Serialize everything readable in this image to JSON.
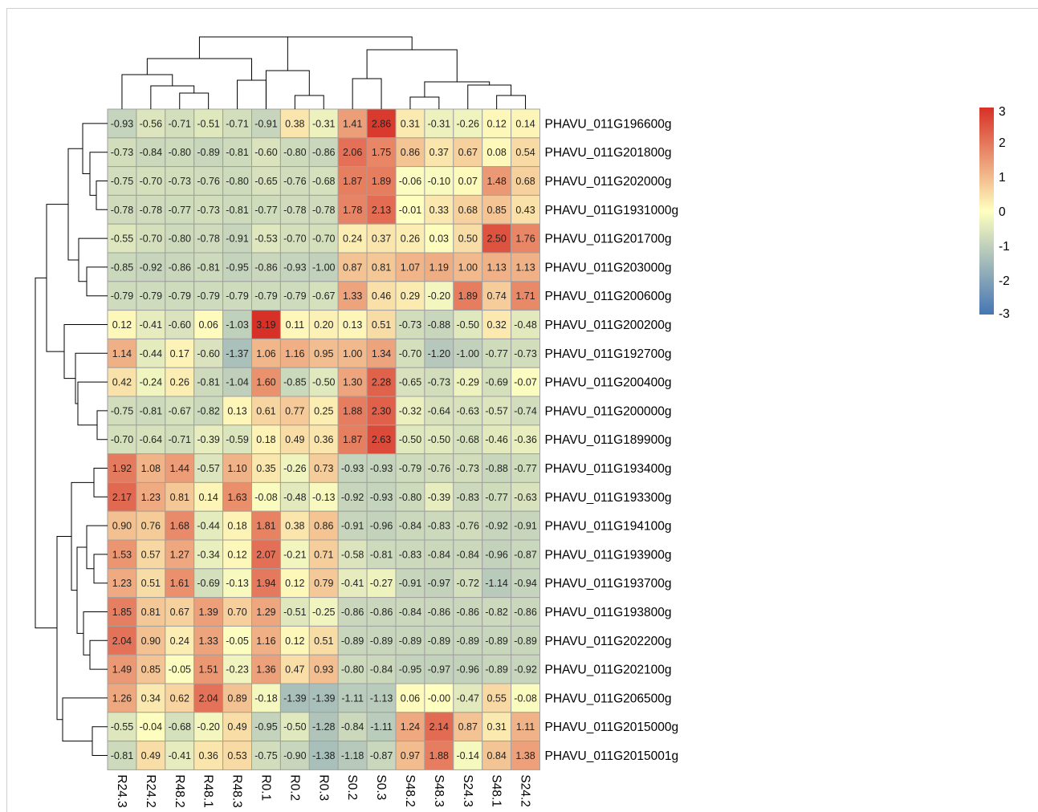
{
  "chart_data": {
    "type": "heatmap",
    "columns": [
      "R24.3",
      "R24.2",
      "R48.2",
      "R48.1",
      "R48.3",
      "R0.1",
      "R0.2",
      "R0.3",
      "S0.2",
      "S0.3",
      "S48.2",
      "S48.3",
      "S24.3",
      "S48.1",
      "S24.2"
    ],
    "rows": [
      "PHAVU_011G196600g",
      "PHAVU_011G201800g",
      "PHAVU_011G202000g",
      "PHAVU_011G1931000g",
      "PHAVU_011G201700g",
      "PHAVU_011G203000g",
      "PHAVU_011G200600g",
      "PHAVU_011G200200g",
      "PHAVU_011G192700g",
      "PHAVU_011G200400g",
      "PHAVU_011G200000g",
      "PHAVU_011G189900g",
      "PHAVU_011G193400g",
      "PHAVU_011G193300g",
      "PHAVU_011G194100g",
      "PHAVU_011G193900g",
      "PHAVU_011G193700g",
      "PHAVU_011G193800g",
      "PHAVU_011G202200g",
      "PHAVU_011G202100g",
      "PHAVU_011G206500g",
      "PHAVU_011G2015000g",
      "PHAVU_011G2015001g"
    ],
    "values": [
      [
        "-0.93",
        "-0.56",
        "-0.71",
        "-0.51",
        "-0.71",
        "-0.91",
        "0.38",
        "-0.31",
        "1.41",
        "2.86",
        "0.31",
        "-0.31",
        "-0.26",
        "0.12",
        "0.14"
      ],
      [
        "-0.73",
        "-0.84",
        "-0.80",
        "-0.89",
        "-0.81",
        "-0.60",
        "-0.80",
        "-0.86",
        "2.06",
        "1.75",
        "0.86",
        "0.37",
        "0.67",
        "0.08",
        "0.54"
      ],
      [
        "-0.75",
        "-0.70",
        "-0.73",
        "-0.76",
        "-0.80",
        "-0.65",
        "-0.76",
        "-0.68",
        "1.87",
        "1.89",
        "-0.06",
        "-0.10",
        "0.07",
        "1.48",
        "0.68"
      ],
      [
        "-0.78",
        "-0.78",
        "-0.77",
        "-0.73",
        "-0.81",
        "-0.77",
        "-0.78",
        "-0.78",
        "1.78",
        "2.13",
        "-0.01",
        "0.33",
        "0.68",
        "0.85",
        "0.43"
      ],
      [
        "-0.55",
        "-0.70",
        "-0.80",
        "-0.78",
        "-0.91",
        "-0.53",
        "-0.70",
        "-0.70",
        "0.24",
        "0.37",
        "0.26",
        "0.03",
        "0.50",
        "2.50",
        "1.76"
      ],
      [
        "-0.85",
        "-0.92",
        "-0.86",
        "-0.81",
        "-0.95",
        "-0.86",
        "-0.93",
        "-1.00",
        "0.87",
        "0.81",
        "1.07",
        "1.19",
        "1.00",
        "1.13",
        "1.13"
      ],
      [
        "-0.79",
        "-0.79",
        "-0.79",
        "-0.79",
        "-0.79",
        "-0.79",
        "-0.79",
        "-0.67",
        "1.33",
        "0.46",
        "0.29",
        "-0.20",
        "1.89",
        "0.74",
        "1.71"
      ],
      [
        "0.12",
        "-0.41",
        "-0.60",
        "0.06",
        "-1.03",
        "3.19",
        "0.11",
        "0.20",
        "0.13",
        "0.51",
        "-0.73",
        "-0.88",
        "-0.50",
        "0.32",
        "-0.48"
      ],
      [
        "1.14",
        "-0.44",
        "0.17",
        "-0.60",
        "-1.37",
        "1.06",
        "1.16",
        "0.95",
        "1.00",
        "1.34",
        "-0.70",
        "-1.20",
        "-1.00",
        "-0.77",
        "-0.73"
      ],
      [
        "0.42",
        "-0.24",
        "0.26",
        "-0.81",
        "-1.04",
        "1.60",
        "-0.85",
        "-0.50",
        "1.30",
        "2.28",
        "-0.65",
        "-0.73",
        "-0.29",
        "-0.69",
        "-0.07"
      ],
      [
        "-0.75",
        "-0.81",
        "-0.67",
        "-0.82",
        "0.13",
        "0.61",
        "0.77",
        "0.25",
        "1.88",
        "2.30",
        "-0.32",
        "-0.64",
        "-0.63",
        "-0.57",
        "-0.74"
      ],
      [
        "-0.70",
        "-0.64",
        "-0.71",
        "-0.39",
        "-0.59",
        "0.18",
        "0.49",
        "0.36",
        "1.87",
        "2.63",
        "-0.50",
        "-0.50",
        "-0.68",
        "-0.46",
        "-0.36"
      ],
      [
        "1.92",
        "1.08",
        "1.44",
        "-0.57",
        "1.10",
        "0.35",
        "-0.26",
        "0.73",
        "-0.93",
        "-0.93",
        "-0.79",
        "-0.76",
        "-0.73",
        "-0.88",
        "-0.77"
      ],
      [
        "2.17",
        "1.23",
        "0.81",
        "0.14",
        "1.63",
        "-0.08",
        "-0.48",
        "-0.13",
        "-0.92",
        "-0.93",
        "-0.80",
        "-0.39",
        "-0.83",
        "-0.77",
        "-0.63"
      ],
      [
        "0.90",
        "0.76",
        "1.68",
        "-0.44",
        "0.18",
        "1.81",
        "0.38",
        "0.86",
        "-0.91",
        "-0.96",
        "-0.84",
        "-0.83",
        "-0.76",
        "-0.92",
        "-0.91"
      ],
      [
        "1.53",
        "0.57",
        "1.27",
        "-0.34",
        "0.12",
        "2.07",
        "-0.21",
        "0.71",
        "-0.58",
        "-0.81",
        "-0.83",
        "-0.84",
        "-0.84",
        "-0.96",
        "-0.87"
      ],
      [
        "1.23",
        "0.51",
        "1.61",
        "-0.69",
        "-0.13",
        "1.94",
        "0.12",
        "0.79",
        "-0.41",
        "-0.27",
        "-0.91",
        "-0.97",
        "-0.72",
        "-1.14",
        "-0.94"
      ],
      [
        "1.85",
        "0.81",
        "0.67",
        "1.39",
        "0.70",
        "1.29",
        "-0.51",
        "-0.25",
        "-0.86",
        "-0.86",
        "-0.84",
        "-0.86",
        "-0.86",
        "-0.82",
        "-0.86"
      ],
      [
        "2.04",
        "0.90",
        "0.24",
        "1.33",
        "-0.05",
        "1.16",
        "0.12",
        "0.51",
        "-0.89",
        "-0.89",
        "-0.89",
        "-0.89",
        "-0.89",
        "-0.89",
        "-0.89"
      ],
      [
        "1.49",
        "0.85",
        "-0.05",
        "1.51",
        "-0.23",
        "1.36",
        "0.47",
        "0.93",
        "-0.80",
        "-0.84",
        "-0.95",
        "-0.97",
        "-0.96",
        "-0.89",
        "-0.92"
      ],
      [
        "1.26",
        "0.34",
        "0.62",
        "2.04",
        "0.89",
        "-0.18",
        "-1.39",
        "-1.39",
        "-1.11",
        "-1.13",
        "0.06",
        "-0.00",
        "-0.47",
        "0.55",
        "-0.08"
      ],
      [
        "-0.55",
        "-0.04",
        "-0.68",
        "-0.20",
        "0.49",
        "-0.95",
        "-0.50",
        "-1.28",
        "-0.84",
        "-1.11",
        "1.24",
        "2.14",
        "0.87",
        "0.31",
        "1.11"
      ],
      [
        "-0.81",
        "0.49",
        "-0.41",
        "0.36",
        "0.53",
        "-0.75",
        "-0.90",
        "-1.38",
        "-1.18",
        "-0.87",
        "0.97",
        "1.88",
        "-0.14",
        "0.84",
        "1.38"
      ]
    ],
    "color_scale": {
      "min": -3,
      "max": 3,
      "low_color": "#4575b4",
      "mid_color": "#ffffbf",
      "high_color": "#d73027",
      "ticks": [
        "3",
        "2",
        "1",
        "0",
        "-1",
        "-2",
        "-3"
      ]
    },
    "cell_border_color": "#a0a0a0",
    "row_dendrogram": true,
    "column_dendrogram": true,
    "legend_position": "right"
  }
}
